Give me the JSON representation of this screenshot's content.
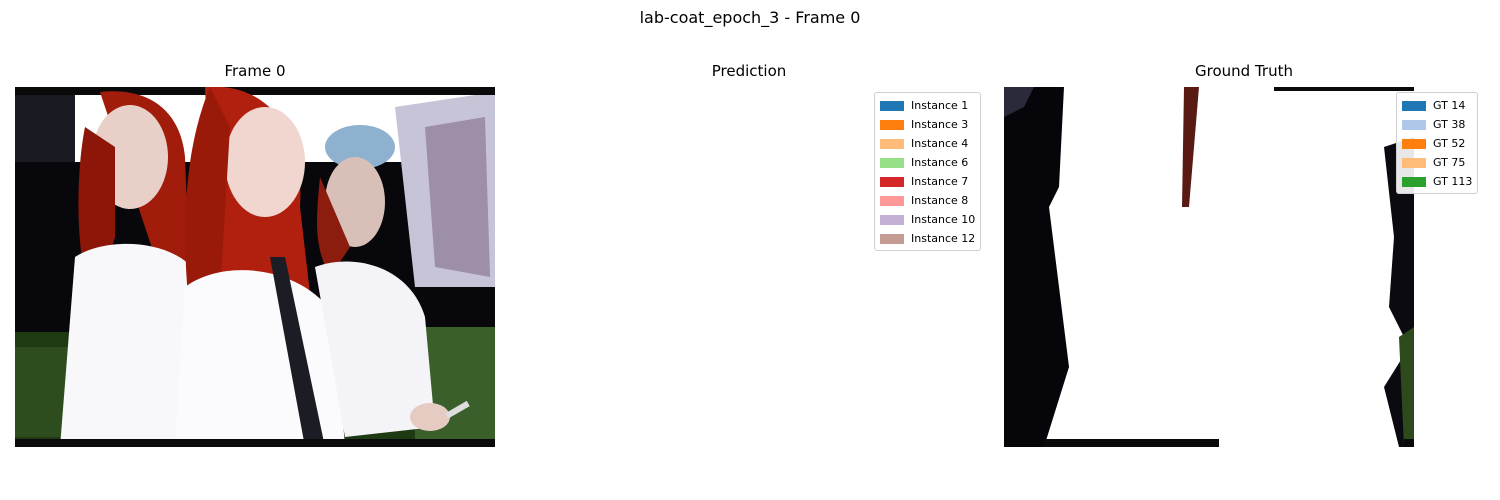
{
  "figure": {
    "suptitle": "lab-coat_epoch_3 - Frame 0"
  },
  "panels": [
    {
      "title": "Frame 0"
    },
    {
      "title": "Prediction"
    },
    {
      "title": "Ground Truth"
    }
  ],
  "prediction_legend": [
    {
      "label": "Instance 1",
      "color": "#1f77b4"
    },
    {
      "label": "Instance 3",
      "color": "#ff7f0e"
    },
    {
      "label": "Instance 4",
      "color": "#ffbb78"
    },
    {
      "label": "Instance 6",
      "color": "#98df8a"
    },
    {
      "label": "Instance 7",
      "color": "#d62728"
    },
    {
      "label": "Instance 8",
      "color": "#ff9896"
    },
    {
      "label": "Instance 10",
      "color": "#c5b0d5"
    },
    {
      "label": "Instance 12",
      "color": "#c49c94"
    }
  ],
  "gt_legend": [
    {
      "label": "GT 14",
      "color": "#1f77b4"
    },
    {
      "label": "GT 38",
      "color": "#aec7e8"
    },
    {
      "label": "GT 52",
      "color": "#ff7f0e"
    },
    {
      "label": "GT 75",
      "color": "#ffbb78"
    },
    {
      "label": "GT 113",
      "color": "#2ca02c"
    }
  ]
}
